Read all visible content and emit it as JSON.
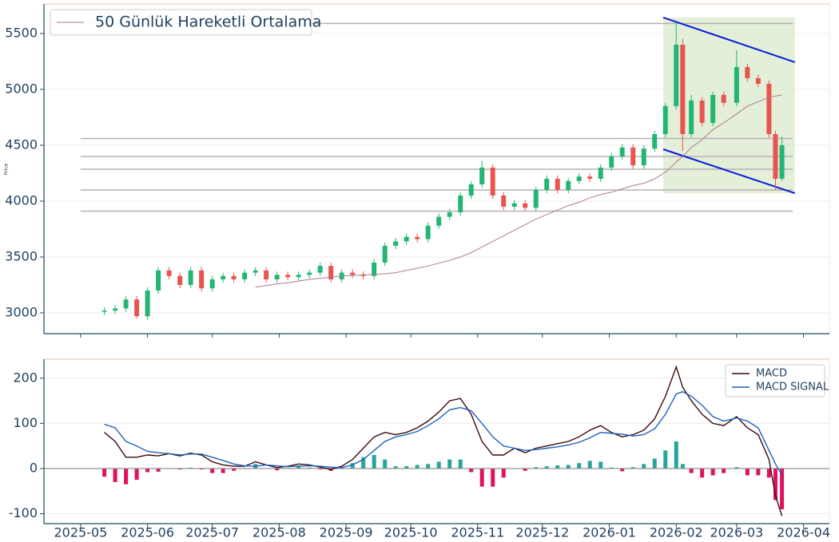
{
  "chart_data": [
    {
      "type": "candlestick",
      "y_label": "Price",
      "legend": "upper left",
      "grid": true,
      "x": [
        "2025-05-12",
        "2025-05-17",
        "2025-05-22",
        "2025-05-27",
        "2025-06-01",
        "2025-06-06",
        "2025-06-11",
        "2025-06-16",
        "2025-06-21",
        "2025-06-26",
        "2025-07-01",
        "2025-07-06",
        "2025-07-11",
        "2025-07-16",
        "2025-07-21",
        "2025-07-26",
        "2025-07-31",
        "2025-08-05",
        "2025-08-10",
        "2025-08-15",
        "2025-08-20",
        "2025-08-25",
        "2025-08-30",
        "2025-09-04",
        "2025-09-09",
        "2025-09-14",
        "2025-09-19",
        "2025-09-24",
        "2025-09-29",
        "2025-10-04",
        "2025-10-09",
        "2025-10-14",
        "2025-10-19",
        "2025-10-24",
        "2025-10-29",
        "2025-11-03",
        "2025-11-08",
        "2025-11-13",
        "2025-11-18",
        "2025-11-23",
        "2025-11-28",
        "2025-12-03",
        "2025-12-08",
        "2025-12-13",
        "2025-12-18",
        "2025-12-23",
        "2025-12-28",
        "2026-01-02",
        "2026-01-07",
        "2026-01-12",
        "2026-01-17",
        "2026-01-22",
        "2026-01-27",
        "2026-02-01",
        "2026-02-04",
        "2026-02-08",
        "2026-02-13",
        "2026-02-18",
        "2026-02-23",
        "2026-03-01",
        "2026-03-06",
        "2026-03-11",
        "2026-03-16",
        "2026-03-19",
        "2026-03-22"
      ],
      "open": [
        3010,
        3020,
        3040,
        3120,
        2970,
        3200,
        3380,
        3330,
        3250,
        3380,
        3220,
        3300,
        3330,
        3300,
        3360,
        3380,
        3300,
        3340,
        3320,
        3340,
        3360,
        3420,
        3300,
        3360,
        3340,
        3330,
        3450,
        3600,
        3640,
        3680,
        3660,
        3780,
        3860,
        3900,
        4050,
        4150,
        4300,
        4050,
        3950,
        3980,
        3940,
        4100,
        4200,
        4100,
        4180,
        4220,
        4200,
        4300,
        4400,
        4480,
        4320,
        4470,
        4600,
        4850,
        5400,
        4600,
        4900,
        4700,
        4950,
        4880,
        5200,
        5100,
        5050,
        4600,
        4200
      ],
      "high": [
        3050,
        3070,
        3150,
        3150,
        3230,
        3410,
        3410,
        3360,
        3410,
        3410,
        3330,
        3360,
        3360,
        3390,
        3410,
        3410,
        3370,
        3370,
        3370,
        3390,
        3450,
        3450,
        3390,
        3390,
        3370,
        3480,
        3630,
        3670,
        3710,
        3710,
        3810,
        3890,
        3930,
        4080,
        4180,
        4360,
        4330,
        4080,
        4010,
        4010,
        4130,
        4230,
        4230,
        4210,
        4250,
        4250,
        4330,
        4430,
        4510,
        4510,
        4500,
        4630,
        4880,
        5600,
        5450,
        4950,
        4930,
        4980,
        4980,
        5350,
        5230,
        5130,
        5080,
        4630,
        4580
      ],
      "low": [
        2980,
        2990,
        3010,
        2950,
        2940,
        3170,
        3300,
        3220,
        3220,
        3190,
        3190,
        3270,
        3270,
        3270,
        3330,
        3270,
        3270,
        3290,
        3290,
        3310,
        3330,
        3270,
        3270,
        3310,
        3300,
        3300,
        3420,
        3570,
        3610,
        3630,
        3630,
        3750,
        3830,
        3870,
        4020,
        4120,
        4020,
        3920,
        3920,
        3910,
        3910,
        4070,
        4070,
        4070,
        4150,
        4170,
        4170,
        4270,
        4370,
        4290,
        4290,
        4440,
        4570,
        4820,
        4450,
        4570,
        4670,
        4670,
        4850,
        4850,
        5070,
        5020,
        4570,
        4100,
        4180
      ],
      "close": [
        3020,
        3040,
        3120,
        2970,
        3200,
        3380,
        3330,
        3250,
        3380,
        3220,
        3300,
        3330,
        3300,
        3360,
        3380,
        3300,
        3340,
        3320,
        3340,
        3360,
        3420,
        3300,
        3360,
        3340,
        3330,
        3450,
        3600,
        3640,
        3680,
        3660,
        3780,
        3860,
        3900,
        4050,
        4150,
        4300,
        4050,
        3950,
        3980,
        3940,
        4100,
        4200,
        4100,
        4180,
        4220,
        4200,
        4300,
        4400,
        4480,
        4320,
        4470,
        4600,
        4850,
        5400,
        4600,
        4900,
        4700,
        4950,
        4880,
        5200,
        5100,
        5050,
        4600,
        4200,
        4500
      ],
      "up_color": "#22b573",
      "down_color": "#e8544e",
      "series": [
        {
          "name": "50 Günlük Hareketli Ortalama",
          "color": "#b07a8c",
          "values": [
            null,
            null,
            null,
            null,
            null,
            null,
            null,
            null,
            null,
            null,
            null,
            null,
            null,
            null,
            3230,
            3245,
            3260,
            3270,
            3285,
            3300,
            3310,
            3320,
            3330,
            3335,
            3340,
            3345,
            3350,
            3360,
            3380,
            3400,
            3420,
            3445,
            3470,
            3500,
            3540,
            3590,
            3640,
            3690,
            3740,
            3790,
            3840,
            3880,
            3920,
            3960,
            3990,
            4030,
            4060,
            4080,
            4110,
            4140,
            4160,
            4200,
            4260,
            4350,
            4400,
            4480,
            4550,
            4640,
            4700,
            4780,
            4850,
            4890,
            4930,
            4940,
            4950
          ]
        }
      ],
      "hlines": [
        5590,
        4560,
        4400,
        4285,
        4100,
        3910
      ],
      "hline_color": "#b8b0b4",
      "hline_span": [
        "2025-05-01",
        "2026-03-27"
      ],
      "channel": {
        "x": [
          "2026-01-26",
          "2026-03-28"
        ],
        "upper": [
          5643,
          5243
        ],
        "lower": [
          4464,
          4071
        ],
        "color": "#0a1bd6",
        "fill": "#dcebd0"
      },
      "xlim": [
        "2025-04-14",
        "2026-04-13"
      ],
      "ylim": [
        2814,
        5764
      ],
      "yticks": [
        3000,
        3500,
        4000,
        4500,
        5000,
        5500
      ],
      "xticks": [
        "2025-05",
        "2025-06",
        "2025-07",
        "2025-08",
        "2025-09",
        "2025-10",
        "2025-11",
        "2025-12",
        "2026-01",
        "2026-02",
        "2026-03",
        "2026-04"
      ]
    },
    {
      "type": "macd",
      "legend": "upper right",
      "grid": true,
      "series": [
        {
          "name": "MACD",
          "color": "#3b0a0a",
          "values": [
            80,
            60,
            25,
            25,
            30,
            28,
            33,
            28,
            34,
            30,
            15,
            8,
            5,
            5,
            15,
            8,
            2,
            5,
            10,
            8,
            3,
            -2,
            5,
            20,
            45,
            70,
            80,
            75,
            80,
            90,
            105,
            125,
            150,
            155,
            120,
            60,
            30,
            30,
            45,
            35,
            45,
            50,
            55,
            60,
            70,
            85,
            95,
            80,
            70,
            75,
            85,
            110,
            160,
            225,
            180,
            150,
            120,
            100,
            95,
            115,
            90,
            75,
            20,
            -60,
            -105
          ]
        },
        {
          "name": "MACD SIGNAL",
          "color": "#1f5fbf",
          "values": [
            98,
            90,
            60,
            50,
            38,
            35,
            33,
            30,
            32,
            32,
            25,
            18,
            10,
            6,
            5,
            8,
            6,
            4,
            5,
            6,
            5,
            3,
            2,
            8,
            20,
            40,
            60,
            70,
            75,
            82,
            95,
            110,
            130,
            135,
            128,
            100,
            70,
            50,
            45,
            40,
            42,
            45,
            48,
            52,
            58,
            68,
            80,
            78,
            76,
            72,
            75,
            88,
            120,
            165,
            170,
            160,
            140,
            115,
            105,
            112,
            105,
            90,
            40,
            10,
            -15
          ]
        }
      ],
      "histogram": {
        "values": [
          -18,
          -30,
          -35,
          -25,
          -8,
          -7,
          0,
          -2,
          2,
          -2,
          -10,
          -10,
          -5,
          -1,
          10,
          0,
          -4,
          1,
          5,
          2,
          -2,
          -5,
          3,
          12,
          25,
          30,
          20,
          5,
          5,
          8,
          10,
          15,
          20,
          20,
          -8,
          -40,
          -40,
          -20,
          0,
          -5,
          3,
          5,
          7,
          8,
          12,
          17,
          15,
          2,
          -6,
          3,
          10,
          22,
          40,
          60,
          10,
          -10,
          -20,
          -15,
          -10,
          3,
          -15,
          -15,
          -20,
          -70,
          -90
        ],
        "up_color": "#26a69a",
        "down_color": "#e0115f"
      },
      "ylim": [
        -122,
        242
      ],
      "yticks": [
        -100,
        0,
        100,
        200
      ],
      "xlim": [
        "2025-04-14",
        "2026-04-13"
      ],
      "xticks": [
        "2025-05",
        "2025-06",
        "2025-07",
        "2025-08",
        "2025-09",
        "2025-10",
        "2025-11",
        "2025-12",
        "2026-01",
        "2026-02",
        "2026-03",
        "2026-04"
      ]
    }
  ]
}
